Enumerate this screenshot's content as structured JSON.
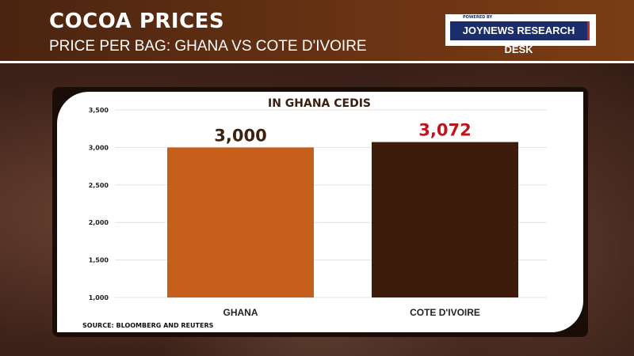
{
  "header": {
    "title": "COCOA PRICES",
    "subtitle": "PRICE PER BAG: GHANA VS COTE D'IVOIRE"
  },
  "badge": {
    "powered_by": "POWERED BY",
    "name": "JOYNEWS RESEARCH DESK"
  },
  "source": "SOURCE: BLOOMBERG AND REUTERS",
  "colors": {
    "ghana": "#c65f1c",
    "cote": "#3d1c0c",
    "ghana_label": "#3d2210",
    "cote_label": "#c0141c"
  },
  "chart_data": {
    "type": "bar",
    "title": "IN GHANA CEDIS",
    "categories": [
      "GHANA",
      "COTE D'IVOIRE"
    ],
    "values": [
      3000,
      3072
    ],
    "value_labels": [
      "3,000",
      "3,072"
    ],
    "ylim": [
      1000,
      3500
    ],
    "yticks": [
      1000,
      1500,
      2000,
      2500,
      3000,
      3500
    ],
    "ytick_labels": [
      "1,000",
      "1,500",
      "2,000",
      "2,500",
      "3,000",
      "3,500"
    ],
    "grid": true,
    "xlabel": "",
    "ylabel": ""
  }
}
